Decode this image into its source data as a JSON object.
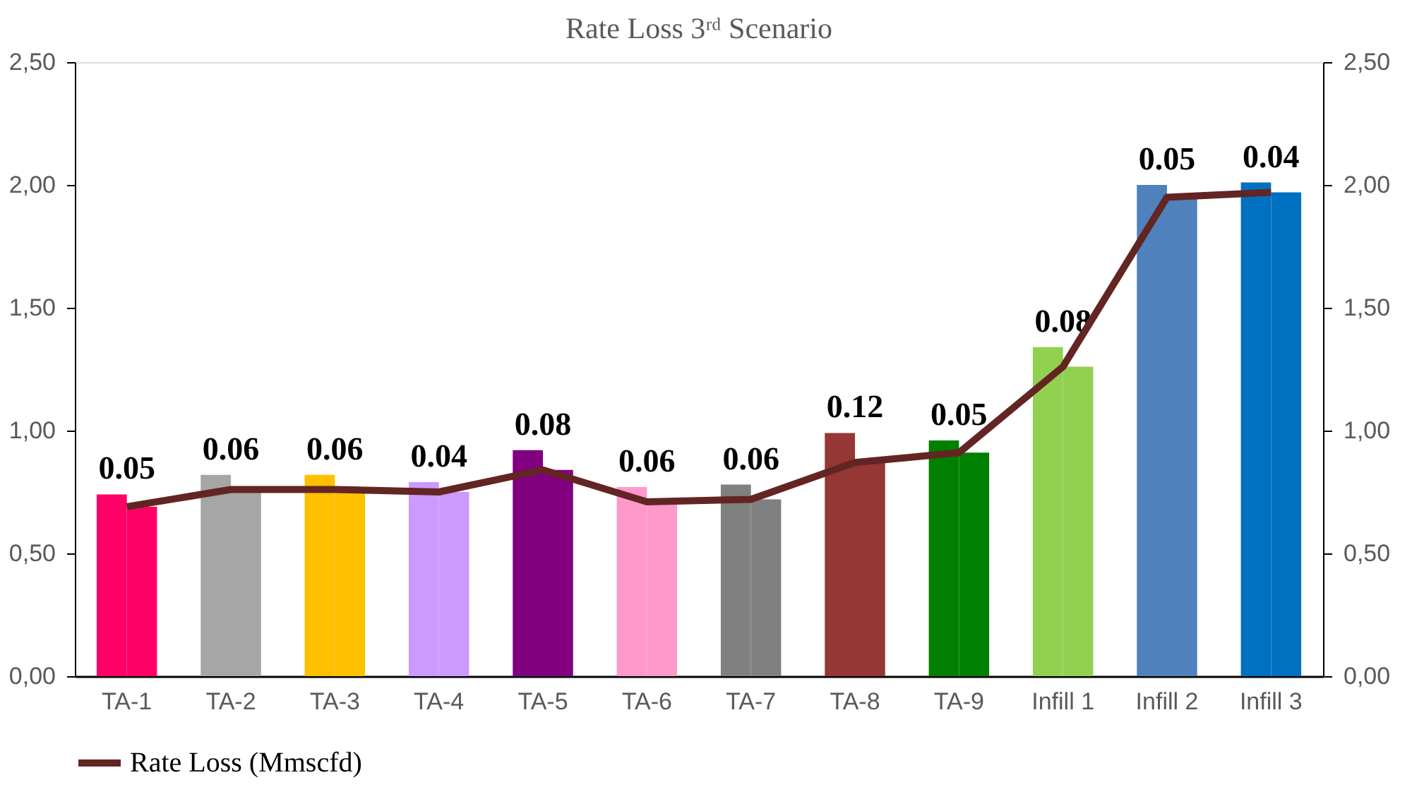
{
  "chart_data": {
    "type": "bar",
    "title": "Rate Loss 3ʳᵈ Scenario",
    "categories": [
      "TA-1",
      "TA-2",
      "TA-3",
      "TA-4",
      "TA-5",
      "TA-6",
      "TA-7",
      "TA-8",
      "TA-9",
      "Infill 1",
      "Infill 2",
      "Infill 3"
    ],
    "series": [
      {
        "colors": [
          "#ff0066",
          "#a6a6a6",
          "#ffc000",
          "#cc99ff",
          "#800080",
          "#ff99cc",
          "#808080",
          "#953735",
          "#008000",
          "#92d050",
          "#4f81bd",
          "#0070c0"
        ],
        "values": [
          0.74,
          0.82,
          0.82,
          0.79,
          0.92,
          0.77,
          0.78,
          0.99,
          0.96,
          1.34,
          2.0,
          2.01
        ]
      },
      {
        "colors": [
          "#ff0066",
          "#a6a6a6",
          "#ffc000",
          "#cc99ff",
          "#800080",
          "#ff99cc",
          "#808080",
          "#953735",
          "#008000",
          "#92d050",
          "#4f81bd",
          "#0070c0"
        ],
        "values": [
          0.69,
          0.76,
          0.76,
          0.75,
          0.84,
          0.71,
          0.72,
          0.87,
          0.91,
          1.26,
          1.95,
          1.97
        ]
      },
      {
        "type": "line",
        "name": "Rate Loss (Mmscfd)",
        "color": "#632523",
        "axis": "y2",
        "values": [
          0.69,
          0.76,
          0.76,
          0.75,
          0.84,
          0.71,
          0.72,
          0.87,
          0.91,
          1.26,
          1.95,
          1.97
        ]
      }
    ],
    "ylim": [
      0,
      2.5
    ],
    "yticks": [
      {
        "value": 0,
        "label": "0,00"
      },
      {
        "value": 0.5,
        "label": "0,50"
      },
      {
        "value": 1,
        "label": "1,00"
      },
      {
        "value": 1.5,
        "label": "1,50"
      },
      {
        "value": 2,
        "label": "2,00"
      },
      {
        "value": 2.5,
        "label": "2,50"
      }
    ],
    "y2lim": [
      0,
      2.5
    ],
    "y2ticks": [
      {
        "value": 0,
        "label": "0,00"
      },
      {
        "value": 0.5,
        "label": "0,50"
      },
      {
        "value": 1,
        "label": "1,00"
      },
      {
        "value": 1.5,
        "label": "1,50"
      },
      {
        "value": 2,
        "label": "2,00"
      },
      {
        "value": 2.5,
        "label": "2,50"
      }
    ],
    "annotations": [
      {
        "text": "0.05",
        "x": "TA-1",
        "y": 0.74
      },
      {
        "text": "0.06",
        "x": "TA-2",
        "y": 0.82
      },
      {
        "text": "0.06",
        "x": "TA-3",
        "y": 0.82
      },
      {
        "text": "0.04",
        "x": "TA-4",
        "y": 0.79
      },
      {
        "text": "0.08",
        "x": "TA-5",
        "y": 0.92
      },
      {
        "text": "0.06",
        "x": "TA-6",
        "y": 0.77
      },
      {
        "text": "0.06",
        "x": "TA-7",
        "y": 0.78
      },
      {
        "text": "0.12",
        "x": "TA-8",
        "y": 0.99
      },
      {
        "text": "0.05",
        "x": "TA-9",
        "y": 0.96
      },
      {
        "text": "0.08",
        "x": "Infill 1",
        "y": 1.34
      },
      {
        "text": "0.05",
        "x": "Infill 2",
        "y": 2.0
      },
      {
        "text": "0.04",
        "x": "Infill 3",
        "y": 2.01
      }
    ],
    "grid": false,
    "legend": "bottom",
    "marker": "none",
    "line_style": "solid"
  }
}
